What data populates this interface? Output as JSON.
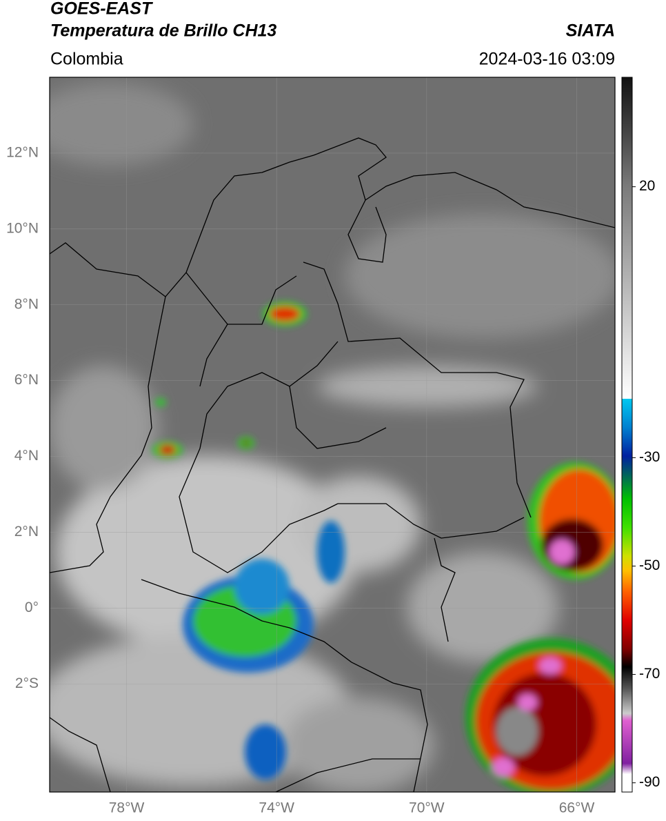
{
  "header": {
    "title_line1": "GOES-EAST",
    "title_line2": "Temperatura de Brillo CH13",
    "source": "SIATA",
    "region": "Colombia",
    "timestamp": "2024-03-16 03:09"
  },
  "map": {
    "lat_lim": [
      -4.85,
      14
    ],
    "lon_lim": [
      -80.05,
      -64.98
    ],
    "lat_ticks": [
      {
        "value": 12,
        "label": "12°N"
      },
      {
        "value": 10,
        "label": "10°N"
      },
      {
        "value": 8,
        "label": "8°N"
      },
      {
        "value": 6,
        "label": "6°N"
      },
      {
        "value": 4,
        "label": "4°N"
      },
      {
        "value": 2,
        "label": "2°N"
      },
      {
        "value": 0,
        "label": "0°"
      },
      {
        "value": -2,
        "label": "2°S"
      }
    ],
    "lon_ticks": [
      {
        "value": -78,
        "label": "78°W"
      },
      {
        "value": -74,
        "label": "74°W"
      },
      {
        "value": -70,
        "label": "70°W"
      },
      {
        "value": -66,
        "label": "66°W"
      }
    ]
  },
  "colorbar": {
    "lim": [
      -91.7,
      40.2
    ],
    "ticks": [
      20,
      -30,
      -50,
      -70,
      -90
    ]
  }
}
